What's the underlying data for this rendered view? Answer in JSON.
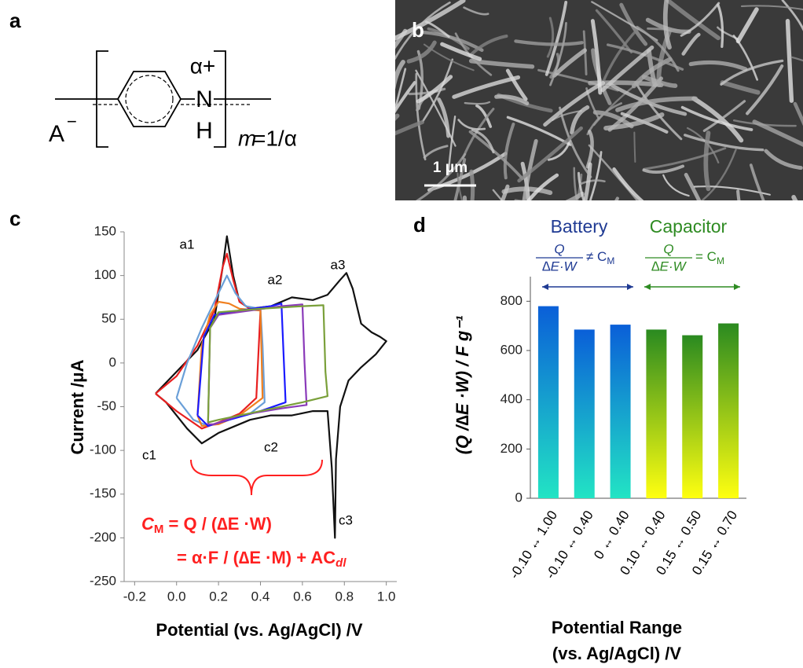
{
  "panel_labels": [
    "a",
    "b",
    "c",
    "d"
  ],
  "structure": {
    "charge": "α+",
    "n": "N",
    "h": "H",
    "anion": "A",
    "anion_charge": "−",
    "m": "m",
    "m_eq": " =1/α"
  },
  "sem": {
    "scale_bar": "1 μm"
  },
  "chart_data": [
    {
      "type": "line",
      "ylabel": "Current /μA",
      "xlabel": "Potential (vs. Ag/AgCl) /V",
      "xlim": [
        -0.25,
        1.05
      ],
      "ylim": [
        -250,
        150
      ],
      "xticks": [
        -0.2,
        {
          "value": 0,
          "label": "0.0"
        },
        0.2,
        0.4,
        0.6,
        0.8,
        {
          "value": 1,
          "label": "1.0"
        }
      ],
      "yticks": [
        -250,
        -200,
        -150,
        -100,
        -50,
        0,
        50,
        100,
        150
      ],
      "peak_labels": [
        "a1",
        "a2",
        "a3",
        "c1",
        "c2",
        "c3"
      ],
      "formula": {
        "c": "C",
        "sub": "M",
        "line1": " = Q / (∆E ·W)",
        "line2": "= α·F / (∆E ·M) + AC",
        "line2_sub": "dl",
        "color": "#ff2020"
      },
      "series": [
        {
          "color": "#111111",
          "x": [
            -0.1,
            0.0,
            0.1,
            0.18,
            0.22,
            0.24,
            0.27,
            0.3,
            0.35,
            0.45,
            0.55,
            0.65,
            0.72,
            0.78,
            0.81,
            0.84,
            0.88,
            0.93,
            0.97,
            1.0,
            0.95,
            0.88,
            0.82,
            0.78,
            0.76,
            0.755,
            0.74,
            0.72,
            0.65,
            0.55,
            0.45,
            0.35,
            0.25,
            0.2,
            0.12,
            0.05,
            -0.05,
            -0.1
          ],
          "values": [
            -35,
            -10,
            15,
            50,
            110,
            145,
            100,
            70,
            62,
            65,
            75,
            72,
            78,
            95,
            103,
            85,
            45,
            35,
            30,
            25,
            10,
            -5,
            -20,
            -50,
            -110,
            -200,
            -120,
            -55,
            -55,
            -60,
            -60,
            -65,
            -75,
            -80,
            -92,
            -75,
            -45,
            -35
          ]
        },
        {
          "color": "#e82020",
          "x": [
            -0.1,
            0.0,
            0.1,
            0.18,
            0.22,
            0.24,
            0.27,
            0.3,
            0.35,
            0.4,
            0.38,
            0.3,
            0.2,
            0.12,
            0.0,
            -0.1
          ],
          "values": [
            -35,
            -15,
            20,
            60,
            110,
            125,
            95,
            70,
            62,
            60,
            -40,
            -58,
            -68,
            -75,
            -55,
            -35
          ]
        },
        {
          "color": "#6a9fd8",
          "x": [
            0.0,
            0.05,
            0.12,
            0.2,
            0.24,
            0.28,
            0.33,
            0.4,
            0.41,
            0.42,
            0.35,
            0.25,
            0.15,
            0.08,
            0.0
          ],
          "values": [
            -40,
            0,
            40,
            80,
            100,
            80,
            65,
            62,
            20,
            -45,
            -58,
            -65,
            -72,
            -65,
            -40
          ]
        },
        {
          "color": "#f08020",
          "x": [
            0.1,
            0.12,
            0.16,
            0.2,
            0.25,
            0.3,
            0.4,
            0.41,
            0.3,
            0.2,
            0.12,
            0.1
          ],
          "values": [
            -60,
            20,
            55,
            70,
            68,
            62,
            60,
            -40,
            -60,
            -70,
            -72,
            -60
          ]
        },
        {
          "color": "#1a1aff",
          "x": [
            0.1,
            0.13,
            0.18,
            0.3,
            0.45,
            0.5,
            0.51,
            0.52,
            0.4,
            0.25,
            0.15,
            0.1
          ],
          "values": [
            -60,
            30,
            55,
            60,
            65,
            68,
            10,
            -45,
            -55,
            -65,
            -72,
            -60
          ]
        },
        {
          "color": "#8a3ab9",
          "x": [
            0.15,
            0.16,
            0.2,
            0.35,
            0.5,
            0.6,
            0.61,
            0.62,
            0.5,
            0.3,
            0.18,
            0.15
          ],
          "values": [
            -70,
            40,
            55,
            60,
            65,
            67,
            0,
            -48,
            -52,
            -60,
            -70,
            -70
          ]
        },
        {
          "color": "#7aa03a",
          "x": [
            0.15,
            0.16,
            0.2,
            0.4,
            0.6,
            0.7,
            0.71,
            0.72,
            0.6,
            0.4,
            0.2,
            0.15
          ],
          "values": [
            -68,
            40,
            58,
            62,
            65,
            66,
            -10,
            -38,
            -45,
            -55,
            -65,
            -68
          ]
        }
      ]
    },
    {
      "type": "bar",
      "ylabel": "(Q /∆E ·W) / F g⁻¹",
      "xlabel": [
        "Potential Range",
        "(vs. Ag/AgCl) /V"
      ],
      "categories": [
        "-0.10 ↔ 1.00",
        "-0.10 ↔ 0.40",
        "0 ↔ 0.40",
        "0.10 ↔ 0.40",
        "0.15 ↔ 0.50",
        "0.15 ↔ 0.70"
      ],
      "values": [
        780,
        685,
        705,
        685,
        662,
        710
      ],
      "gradients": [
        [
          "#0a5fd8",
          "#22e4c4"
        ],
        [
          "#0a5fd8",
          "#22e4c4"
        ],
        [
          "#0a5fd8",
          "#22e4c4"
        ],
        [
          "#2a8a20",
          "#ffff10"
        ],
        [
          "#2a8a20",
          "#ffff10"
        ],
        [
          "#2a8a20",
          "#ffff10"
        ]
      ],
      "ylim": [
        0,
        900
      ],
      "yticks": [
        0,
        200,
        400,
        600,
        800
      ],
      "groups": [
        {
          "name": "Battery",
          "color": "#1f3a93",
          "numerator": "Q",
          "denominator": "∆E·W",
          "relation": "≠ C",
          "sub": "M"
        },
        {
          "name": "Capacitor",
          "color": "#2e8b22",
          "numerator": "Q",
          "denominator": "∆E·W",
          "relation": "= C",
          "sub": "M"
        }
      ]
    }
  ]
}
